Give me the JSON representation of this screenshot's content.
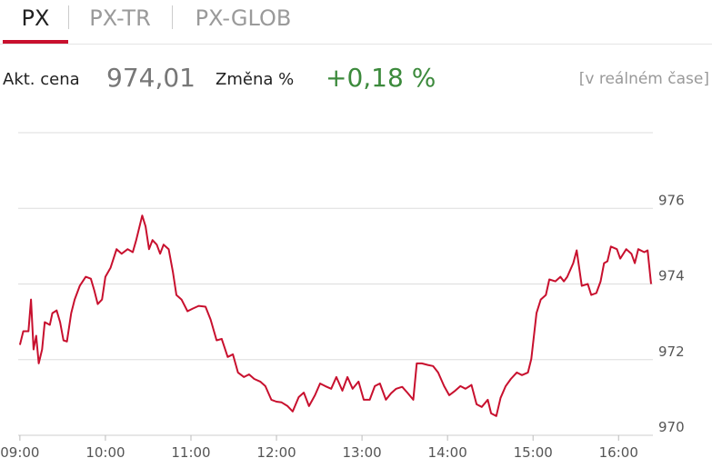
{
  "tabs": [
    "PX",
    "PX-TR",
    "PX-GLOB"
  ],
  "quote": {
    "price_label": "Akt. cena",
    "price": "974,01",
    "change_label": "Změna %",
    "change": "+0,18 %",
    "note": "[v reálném čase]"
  },
  "chart_data": {
    "type": "line",
    "color": "#c8102e",
    "xlim": [
      8.98,
      16.38
    ],
    "xticks": [
      {
        "value": 9,
        "label": "09:00"
      },
      {
        "value": 10,
        "label": "10:00"
      },
      {
        "value": 11,
        "label": "11:00"
      },
      {
        "value": 12,
        "label": "12:00"
      },
      {
        "value": 13,
        "label": "13:00"
      },
      {
        "value": 14,
        "label": "14:00"
      },
      {
        "value": 15,
        "label": "15:00"
      },
      {
        "value": 16,
        "label": "16:00"
      }
    ],
    "ylim": [
      970,
      978
    ],
    "yticks": [
      970,
      972,
      974,
      976
    ],
    "grid": true,
    "x": [
      9.0,
      9.04,
      9.1,
      9.13,
      9.16,
      9.19,
      9.22,
      9.26,
      9.29,
      9.35,
      9.38,
      9.43,
      9.47,
      9.51,
      9.55,
      9.6,
      9.64,
      9.7,
      9.77,
      9.83,
      9.87,
      9.91,
      9.96,
      10.0,
      10.06,
      10.13,
      10.19,
      10.26,
      10.32,
      10.36,
      10.43,
      10.47,
      10.51,
      10.55,
      10.6,
      10.64,
      10.68,
      10.74,
      10.79,
      10.83,
      10.89,
      10.96,
      11.02,
      11.09,
      11.17,
      11.23,
      11.3,
      11.36,
      11.43,
      11.49,
      11.55,
      11.62,
      11.68,
      11.74,
      11.81,
      11.87,
      11.94,
      12.0,
      12.06,
      12.13,
      12.19,
      12.26,
      12.32,
      12.38,
      12.45,
      12.51,
      12.57,
      12.64,
      12.7,
      12.77,
      12.83,
      12.89,
      12.96,
      13.02,
      13.09,
      13.15,
      13.21,
      13.28,
      13.34,
      13.4,
      13.47,
      13.53,
      13.6,
      13.64,
      13.7,
      13.77,
      13.83,
      13.89,
      13.96,
      14.02,
      14.09,
      14.15,
      14.21,
      14.28,
      14.34,
      14.4,
      14.47,
      14.51,
      14.57,
      14.62,
      14.68,
      14.74,
      14.81,
      14.87,
      14.94,
      14.98,
      15.04,
      15.09,
      15.15,
      15.19,
      15.26,
      15.32,
      15.36,
      15.4,
      15.47,
      15.51,
      15.57,
      15.64,
      15.68,
      15.74,
      15.79,
      15.83,
      15.87,
      15.91,
      15.98,
      16.02,
      16.09,
      16.15,
      16.19,
      16.23,
      16.3,
      16.34,
      16.38
    ],
    "values": [
      972.39,
      972.75,
      972.75,
      973.59,
      972.27,
      972.63,
      971.9,
      972.27,
      972.99,
      972.92,
      973.23,
      973.3,
      972.99,
      972.51,
      972.48,
      973.23,
      973.59,
      973.95,
      974.19,
      974.14,
      973.83,
      973.47,
      973.59,
      974.19,
      974.43,
      974.92,
      974.8,
      974.92,
      974.84,
      975.16,
      975.81,
      975.52,
      974.92,
      975.16,
      975.04,
      974.8,
      975.04,
      974.92,
      974.31,
      973.71,
      973.59,
      973.28,
      973.35,
      973.42,
      973.4,
      973.06,
      972.51,
      972.55,
      972.07,
      972.14,
      971.66,
      971.54,
      971.61,
      971.49,
      971.42,
      971.3,
      970.94,
      970.89,
      970.87,
      970.77,
      970.63,
      971.01,
      971.13,
      970.77,
      971.06,
      971.37,
      971.3,
      971.23,
      971.54,
      971.18,
      971.54,
      971.23,
      971.42,
      970.94,
      970.94,
      971.3,
      971.37,
      970.94,
      971.11,
      971.23,
      971.28,
      971.13,
      970.94,
      971.9,
      971.9,
      971.86,
      971.83,
      971.66,
      971.3,
      971.06,
      971.18,
      971.3,
      971.23,
      971.33,
      970.82,
      970.75,
      970.94,
      970.58,
      970.51,
      970.99,
      971.3,
      971.49,
      971.66,
      971.59,
      971.66,
      972.02,
      973.23,
      973.59,
      973.71,
      974.12,
      974.07,
      974.19,
      974.07,
      974.19,
      974.55,
      974.89,
      973.95,
      974.0,
      973.71,
      973.76,
      974.07,
      974.55,
      974.6,
      974.99,
      974.92,
      974.67,
      974.92,
      974.8,
      974.55,
      974.92,
      974.84,
      974.89,
      974.0
    ]
  }
}
